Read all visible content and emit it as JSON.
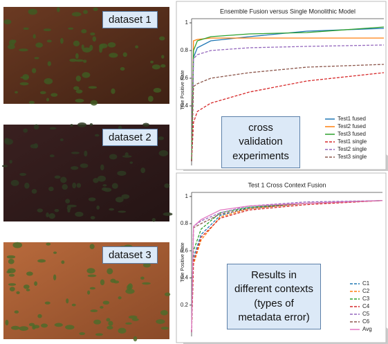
{
  "images": [
    {
      "label": "dataset 1"
    },
    {
      "label": "dataset 2"
    },
    {
      "label": "dataset 3"
    }
  ],
  "chart_data": [
    {
      "type": "line",
      "title": "Ensemble Fusion versus Single Monolithic Model",
      "ylabel": "True Positive Rate",
      "annotation": "cross validation experiments",
      "x": [
        0,
        0.01,
        0.03,
        0.1,
        0.3,
        0.6,
        1.0
      ],
      "xlim": [
        0,
        1
      ],
      "ylim": [
        0,
        1.03
      ],
      "yticks": [
        0.4,
        0.6,
        0.8,
        1.0
      ],
      "series": [
        {
          "name": "Test1 fused",
          "color": "#1f77b4",
          "linestyle": "solid",
          "values": [
            0,
            0.75,
            0.82,
            0.87,
            0.9,
            0.94,
            0.96
          ]
        },
        {
          "name": "Test2 fused",
          "color": "#ff7f0e",
          "linestyle": "solid",
          "values": [
            0,
            0.87,
            0.88,
            0.89,
            0.89,
            0.89,
            0.89
          ]
        },
        {
          "name": "Test3 fused",
          "color": "#2ca02c",
          "linestyle": "solid",
          "values": [
            0,
            0.8,
            0.87,
            0.9,
            0.92,
            0.93,
            0.97
          ]
        },
        {
          "name": "Test1 single",
          "color": "#d62728",
          "linestyle": "dashed",
          "values": [
            0,
            0.28,
            0.36,
            0.42,
            0.5,
            0.58,
            0.64
          ]
        },
        {
          "name": "Test2 single",
          "color": "#9467bd",
          "linestyle": "dashed",
          "values": [
            0,
            0.74,
            0.77,
            0.8,
            0.82,
            0.83,
            0.84
          ]
        },
        {
          "name": "Test3 single",
          "color": "#8c564b",
          "linestyle": "dashed",
          "values": [
            0,
            0.54,
            0.56,
            0.6,
            0.64,
            0.68,
            0.7
          ]
        }
      ]
    },
    {
      "type": "line",
      "title": "Test 1 Cross Context Fusion",
      "ylabel": "True Positive Rate",
      "annotation": "Results in different contexts (types of metadata error)",
      "x": [
        0,
        0.01,
        0.05,
        0.15,
        0.3,
        0.6,
        1.0
      ],
      "xlim": [
        0,
        1
      ],
      "ylim": [
        0,
        1.03
      ],
      "yticks": [
        0.2,
        0.4,
        0.6,
        0.8,
        1.0
      ],
      "series": [
        {
          "name": "C1",
          "color": "#1f77b4",
          "linestyle": "dashed",
          "values": [
            0,
            0.55,
            0.72,
            0.86,
            0.92,
            0.95,
            0.97
          ]
        },
        {
          "name": "C2",
          "color": "#ff7f0e",
          "linestyle": "dashed",
          "values": [
            0,
            0.5,
            0.68,
            0.85,
            0.91,
            0.95,
            0.97
          ]
        },
        {
          "name": "C3",
          "color": "#2ca02c",
          "linestyle": "dashed",
          "values": [
            0,
            0.6,
            0.76,
            0.88,
            0.92,
            0.95,
            0.97
          ]
        },
        {
          "name": "C4",
          "color": "#d62728",
          "linestyle": "dashed",
          "values": [
            0,
            0.52,
            0.7,
            0.84,
            0.9,
            0.94,
            0.97
          ]
        },
        {
          "name": "C5",
          "color": "#9467bd",
          "linestyle": "dashed",
          "values": [
            0,
            0.78,
            0.82,
            0.88,
            0.93,
            0.96,
            0.97
          ]
        },
        {
          "name": "C6",
          "color": "#8c564b",
          "linestyle": "dashed",
          "values": [
            0,
            0.77,
            0.8,
            0.87,
            0.91,
            0.95,
            0.97
          ]
        },
        {
          "name": "Avg",
          "color": "#e377c2",
          "linestyle": "solid",
          "values": [
            0,
            0.78,
            0.83,
            0.9,
            0.93,
            0.95,
            0.97
          ]
        }
      ]
    }
  ]
}
